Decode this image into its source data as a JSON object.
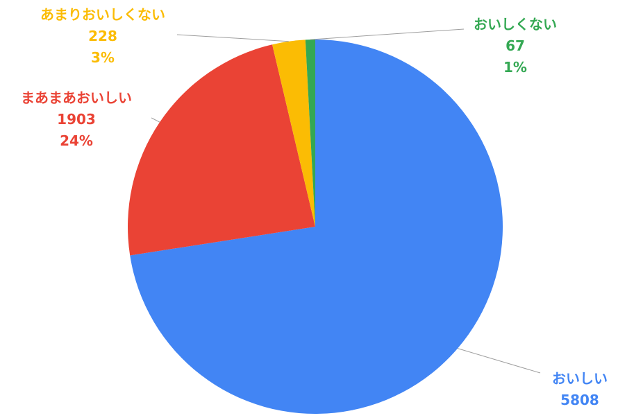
{
  "chart_data": {
    "type": "pie",
    "title": "",
    "legend": "none",
    "start_angle_deg": 0,
    "direction": "clockwise",
    "slices": [
      {
        "label": "おいしい",
        "value": 5808,
        "percent": "72%",
        "color": "#4285F4"
      },
      {
        "label": "まあまあおいしい",
        "value": 1903,
        "percent": "24%",
        "color": "#EA4335"
      },
      {
        "label": "あまりおいしくない",
        "value": 228,
        "percent": "3%",
        "color": "#FBBC04"
      },
      {
        "label": "おいしくない",
        "value": 67,
        "percent": "1%",
        "color": "#34A853"
      }
    ]
  }
}
